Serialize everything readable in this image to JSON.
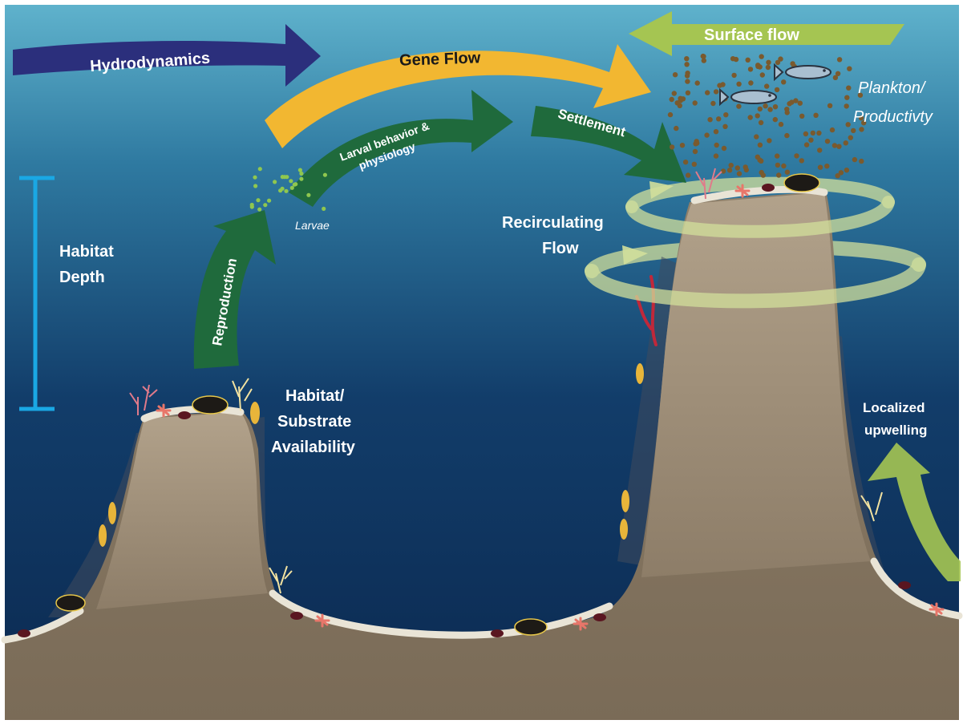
{
  "labels": {
    "hydrodynamics": "Hydrodynamics",
    "gene_flow": "Gene Flow",
    "surface_flow": "Surface flow",
    "larval_line1": "Larval behavior &",
    "larval_line2": "physiology",
    "settlement": "Settlement",
    "reproduction": "Reproduction",
    "larvae": "Larvae",
    "plankton_line1": "Plankton/",
    "plankton_line2": "Productivty",
    "recirc_line1": "Recirculating",
    "recirc_line2": "Flow",
    "habitat_depth_line1": "Habitat",
    "habitat_depth_line2": "Depth",
    "substrate_line1": "Habitat/",
    "substrate_line2": "Substrate",
    "substrate_line3": "Availability",
    "upwelling_line1": "Localized",
    "upwelling_line2": "upwelling"
  },
  "colors": {
    "water_top": "#5fb2cc",
    "water_bottom": "#0b2950",
    "seafloor": "#8a7a66",
    "rock": "#a1917b",
    "substrate": "#e9e4d6",
    "hydro_arrow": "#2b2f7c",
    "gene_arrow": "#f2b731",
    "green_arrow": "#1f6a3c",
    "surface_arrow": "#a5c552",
    "recirc_ring": "#d2df9b",
    "depth_bar": "#1aa8e4",
    "plankton_dot": "#7a5a2e",
    "larvae_dot": "#8fc74f"
  }
}
